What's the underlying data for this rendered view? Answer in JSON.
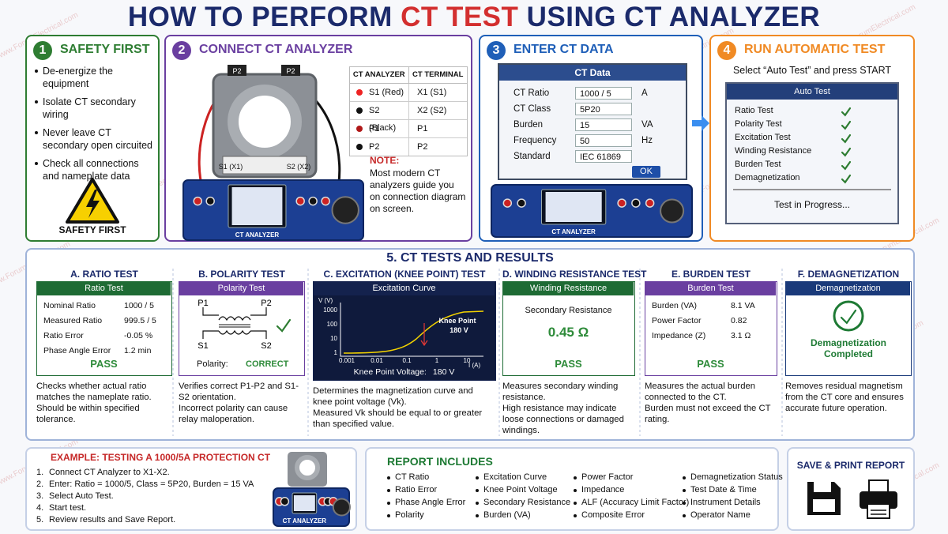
{
  "header": {
    "title_a": "HOW TO PERFORM ",
    "title_b": "CT TEST",
    "title_c": " USING CT ANALYZER"
  },
  "watermark": "www.ForumElectrical.com",
  "step1": {
    "number": "1",
    "title": "SAFETY FIRST",
    "items": [
      "De-energize the equipment",
      "Isolate CT secondary wiring",
      "Never leave CT secondary open circuited",
      "Check all connections and nameplate data"
    ],
    "badge": "SAFETY FIRST"
  },
  "step2": {
    "number": "2",
    "title": "CONNECT CT ANALYZER",
    "device": {
      "terminals": [
        "P2",
        "P2"
      ],
      "secondary": [
        "S1 (X1)",
        "S2 (X2)"
      ],
      "label": "CT ANALYZER"
    },
    "table": {
      "columns": [
        "CT  ANALYZER",
        "CT TERMINAL"
      ],
      "rows": [
        [
          "S1 (Red)",
          "X1 (S1)"
        ],
        [
          "S2 (Black)",
          "X2 (S2)"
        ],
        [
          "P1",
          "P1"
        ],
        [
          "P2",
          "P2"
        ]
      ]
    },
    "note_title": "NOTE:",
    "note": "Most modern CT analyzers guide you on connection diagram on screen."
  },
  "step3": {
    "number": "3",
    "title": "ENTER CT DATA",
    "dialog": {
      "title": "CT Data",
      "fields": [
        {
          "label": "CT Ratio",
          "value": "1000 / 5",
          "unit": "A"
        },
        {
          "label": "CT Class",
          "value": "5P20"
        },
        {
          "label": "Burden",
          "value": "15",
          "unit": "VA"
        },
        {
          "label": "Frequency",
          "value": "50",
          "unit": "Hz"
        },
        {
          "label": "Standard",
          "value": "IEC 61869"
        }
      ],
      "button": "OK"
    },
    "device_label": "CT ANALYZER"
  },
  "step4": {
    "number": "4",
    "title": "RUN AUTOMATIC TEST",
    "instruction": "Select “Auto Test” and press START",
    "panel": {
      "title": "Auto Test",
      "items": [
        "Ratio Test",
        "Polarity Test",
        "Excitation Test",
        "Winding Resistance",
        "Burden Test",
        "Demagnetization"
      ],
      "status": "Test in Progress..."
    }
  },
  "results": {
    "title": "5. CT TESTS AND RESULTS",
    "ratio": {
      "heading": "A. RATIO TEST",
      "panel": "Ratio Test",
      "rows": [
        [
          "Nominal Ratio",
          "1000 / 5"
        ],
        [
          "Measured Ratio",
          "999.5 / 5"
        ],
        [
          "Ratio Error",
          "-0.05 %"
        ],
        [
          "Phase Angle Error",
          "1.2 min"
        ]
      ],
      "result": "PASS",
      "description": [
        "Checks whether actual ratio matches the nameplate ratio.",
        "Should be within specified tolerance."
      ]
    },
    "polarity": {
      "heading": "B. POLARITY TEST",
      "panel": "Polarity Test",
      "terminals": [
        "P1",
        "P2",
        "S1",
        "S2"
      ],
      "label": "Polarity:",
      "result": "CORRECT",
      "description": [
        "Verifies correct P1-P2 and S1-S2 orientation.",
        "Incorrect polarity can cause relay maloperation."
      ]
    },
    "excitation": {
      "heading": "C. EXCITATION (KNEE POINT) TEST",
      "panel": "Excitation Curve",
      "y_label": "V (V)",
      "y_ticks": [
        "1000",
        "100",
        "10",
        "1"
      ],
      "x_ticks": [
        "0.001",
        "0.01",
        "0.1",
        "1",
        "10"
      ],
      "x_label": "I (A)",
      "knee_label": "Knee Point",
      "knee_value": "180 V",
      "footer_label": "Knee Point Voltage:",
      "footer_value": "180 V",
      "description": [
        "Determines the magnetization curve and knee point voltage (Vk).",
        "Measured Vk should be equal to or greater than specified value."
      ]
    },
    "winding": {
      "heading": "D. WINDING RESISTANCE TEST",
      "panel": "Winding Resistance",
      "label": "Secondary Resistance",
      "value": "0.45  Ω",
      "result": "PASS",
      "description": [
        "Measures secondary winding resistance.",
        "High resistance may indicate loose connections or damaged windings."
      ]
    },
    "burden": {
      "heading": "E. BURDEN TEST",
      "panel": "Burden Test",
      "rows": [
        [
          "Burden (VA)",
          "8.1  VA"
        ],
        [
          "Power Factor",
          "0.82"
        ],
        [
          "Impedance (Z)",
          "3.1  Ω"
        ]
      ],
      "result": "PASS",
      "description": [
        "Measures the actual burden connected to the CT.",
        "Burden must not exceed the CT rating."
      ]
    },
    "demag": {
      "heading": "F. DEMAGNETIZATION",
      "panel": "Demagnetization",
      "result": "Demagnetization Completed",
      "description": [
        "Removes residual magnetism from the CT core and ensures accurate future operation."
      ]
    }
  },
  "example": {
    "title": "EXAMPLE: TESTING A 1000/5A PROTECTION CT",
    "steps": [
      {
        "n": "1.",
        "text": "Connect CT Analyzer to X1-X2."
      },
      {
        "n": "2.",
        "text": "Enter: Ratio = 1000/5, Class = 5P20, Burden = 15 VA"
      },
      {
        "n": "3.",
        "text": "Select Auto Test."
      },
      {
        "n": "4.",
        "text": "Start test."
      },
      {
        "n": "5.",
        "text": "Review results and Save Report."
      }
    ]
  },
  "report": {
    "title": "REPORT INCLUDES",
    "columns": [
      [
        "CT Ratio",
        "Ratio Error",
        "Phase Angle Error",
        "Polarity"
      ],
      [
        "Excitation Curve",
        "Knee Point Voltage",
        "Secondary Resistance",
        "Burden (VA)"
      ],
      [
        "Power Factor",
        "Impedance",
        "ALF (Accuracy Limit Factor)",
        "Composite Error"
      ],
      [
        "Demagnetization Status",
        "Test Date & Time",
        "Instrument Details",
        "Operator Name"
      ]
    ]
  },
  "save": {
    "title": "SAVE & PRINT REPORT"
  }
}
